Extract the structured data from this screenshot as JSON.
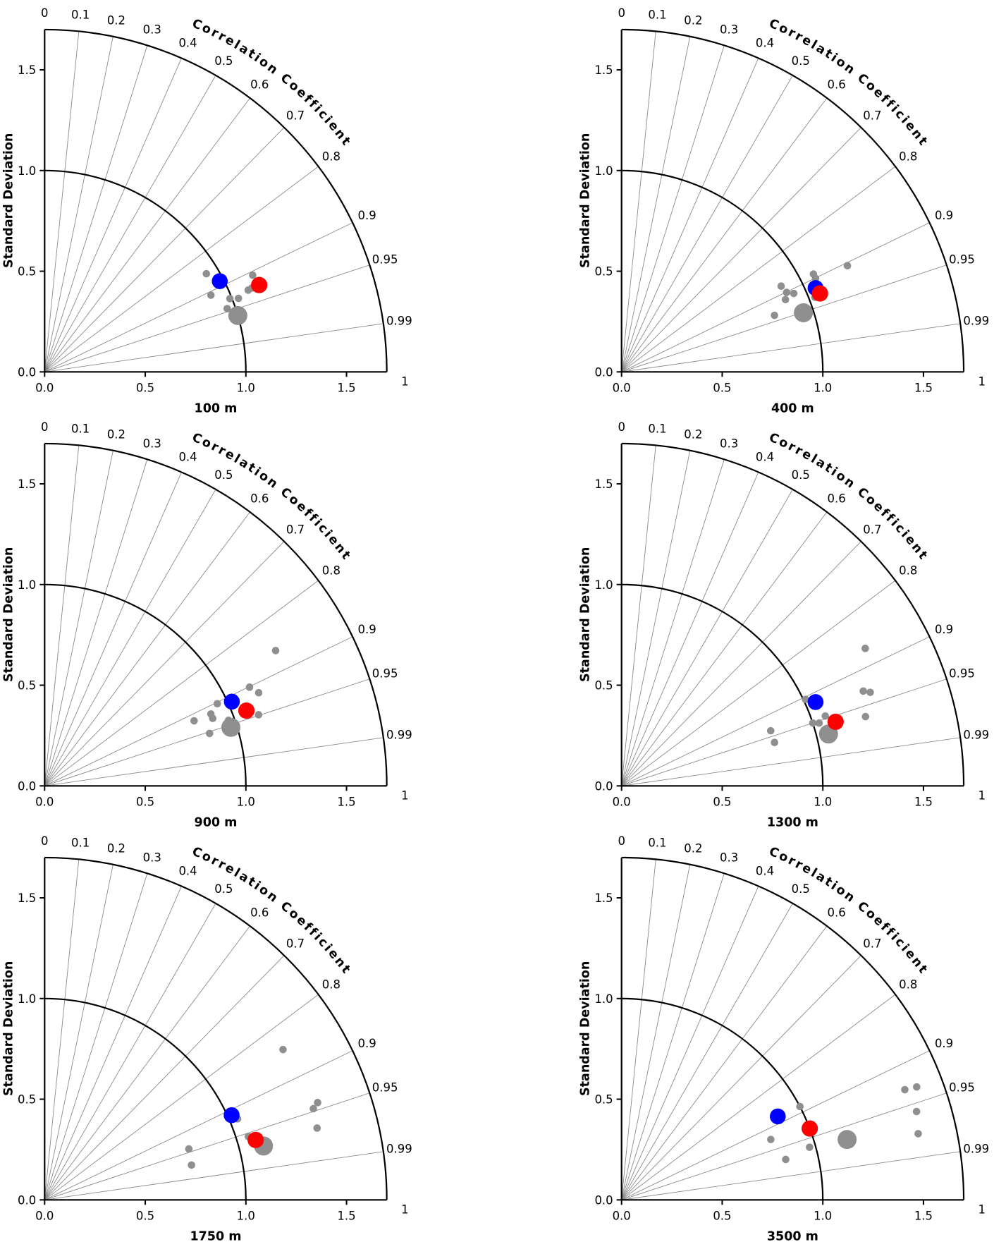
{
  "figure": {
    "ylabel": "Standard Deviation",
    "arc_label": "Correlation Coefficient",
    "x_tick_labels": [
      "0.0",
      "0.5",
      "1.0",
      "1.5"
    ],
    "y_tick_labels": [
      "0.0",
      "0.5",
      "1.0",
      "1.5"
    ],
    "x_tick_values": [
      0,
      0.5,
      1.0,
      1.5
    ],
    "y_tick_values": [
      0,
      0.5,
      1.0,
      1.5
    ],
    "corr_ticks": [
      {
        "value": 0.0,
        "label": "0"
      },
      {
        "value": 0.1,
        "label": "0.1"
      },
      {
        "value": 0.2,
        "label": "0.2"
      },
      {
        "value": 0.3,
        "label": "0.3"
      },
      {
        "value": 0.4,
        "label": "0.4"
      },
      {
        "value": 0.5,
        "label": "0.5"
      },
      {
        "value": 0.6,
        "label": "0.6"
      },
      {
        "value": 0.7,
        "label": "0.7"
      },
      {
        "value": 0.8,
        "label": "0.8"
      },
      {
        "value": 0.9,
        "label": "0.9"
      },
      {
        "value": 0.95,
        "label": "0.95"
      },
      {
        "value": 0.99,
        "label": "0.99"
      },
      {
        "value": 1.0,
        "label": "1"
      }
    ],
    "radial_max": 1.7,
    "reference_std_arc": 1.0,
    "colors": {
      "blue_marker": "#0000ff",
      "red_marker": "#ff0000",
      "gray_marker": "#8f8f8f",
      "grid_line": "#8a8a8a",
      "axis_line": "#000000",
      "background": "#ffffff"
    }
  },
  "chart_data": [
    {
      "type": "taylor",
      "title": "100 m",
      "axis_range": [
        0,
        1.7
      ],
      "blue": {
        "corr": 0.888,
        "std": 0.98
      },
      "red": {
        "corr": 0.927,
        "std": 1.15
      },
      "gray_large": {
        "corr": 0.96,
        "std": 1.0
      },
      "gray_small": [
        {
          "corr": 0.855,
          "std": 0.94
        },
        {
          "corr": 0.907,
          "std": 1.14
        },
        {
          "corr": 0.908,
          "std": 0.91
        },
        {
          "corr": 0.928,
          "std": 1.09
        },
        {
          "corr": 0.927,
          "std": 1.11
        },
        {
          "corr": 0.93,
          "std": 0.99
        },
        {
          "corr": 0.935,
          "std": 1.03
        },
        {
          "corr": 0.945,
          "std": 0.96
        }
      ]
    },
    {
      "type": "taylor",
      "title": "400 m",
      "axis_range": [
        0,
        1.7
      ],
      "blue": {
        "corr": 0.918,
        "std": 1.05
      },
      "red": {
        "corr": 0.93,
        "std": 1.06
      },
      "gray_large": {
        "corr": 0.951,
        "std": 0.95
      },
      "gray_small": [
        {
          "corr": 0.905,
          "std": 1.24
        },
        {
          "corr": 0.891,
          "std": 1.07
        },
        {
          "corr": 0.901,
          "std": 1.07
        },
        {
          "corr": 0.881,
          "std": 0.9
        },
        {
          "corr": 0.901,
          "std": 0.91
        },
        {
          "corr": 0.91,
          "std": 0.94
        },
        {
          "corr": 0.915,
          "std": 0.89
        },
        {
          "corr": 0.938,
          "std": 0.81
        },
        {
          "corr": 0.933,
          "std": 1.03
        }
      ]
    },
    {
      "type": "taylor",
      "title": "900 m",
      "axis_range": [
        0,
        1.7
      ],
      "blue": {
        "corr": 0.912,
        "std": 1.02
      },
      "red": {
        "corr": 0.937,
        "std": 1.07
      },
      "gray_large": {
        "corr": 0.954,
        "std": 0.97
      },
      "gray_small": [
        {
          "corr": 0.863,
          "std": 1.33
        },
        {
          "corr": 0.901,
          "std": 1.13
        },
        {
          "corr": 0.917,
          "std": 1.16
        },
        {
          "corr": 0.903,
          "std": 0.95
        },
        {
          "corr": 0.918,
          "std": 0.9
        },
        {
          "corr": 0.928,
          "std": 0.9
        },
        {
          "corr": 0.917,
          "std": 0.81
        },
        {
          "corr": 0.949,
          "std": 1.12
        },
        {
          "corr": 0.942,
          "std": 0.97
        },
        {
          "corr": 0.953,
          "std": 0.86
        }
      ]
    },
    {
      "type": "taylor",
      "title": "1300 m",
      "axis_range": [
        0,
        1.7
      ],
      "blue": {
        "corr": 0.918,
        "std": 1.05
      },
      "red": {
        "corr": 0.958,
        "std": 1.11
      },
      "gray_large": {
        "corr": 0.97,
        "std": 1.06
      },
      "gray_small": [
        {
          "corr": 0.871,
          "std": 1.39
        },
        {
          "corr": 0.931,
          "std": 1.29
        },
        {
          "corr": 0.936,
          "std": 1.32
        },
        {
          "corr": 0.905,
          "std": 1.01
        },
        {
          "corr": 0.962,
          "std": 1.26
        },
        {
          "corr": 0.946,
          "std": 1.07
        },
        {
          "corr": 0.95,
          "std": 1.0
        },
        {
          "corr": 0.953,
          "std": 1.03
        },
        {
          "corr": 0.938,
          "std": 0.79
        },
        {
          "corr": 0.962,
          "std": 0.79
        }
      ]
    },
    {
      "type": "taylor",
      "title": "1750 m",
      "axis_range": [
        0,
        1.7
      ],
      "blue": {
        "corr": 0.911,
        "std": 1.02
      },
      "red": {
        "corr": 0.962,
        "std": 1.09
      },
      "gray_large": {
        "corr": 0.971,
        "std": 1.12
      },
      "gray_small": [
        {
          "corr": 0.846,
          "std": 1.4
        },
        {
          "corr": 0.942,
          "std": 1.44
        },
        {
          "corr": 0.947,
          "std": 1.41
        },
        {
          "corr": 0.967,
          "std": 1.4
        },
        {
          "corr": 0.922,
          "std": 1.04
        },
        {
          "corr": 0.955,
          "std": 1.06
        },
        {
          "corr": 0.965,
          "std": 1.13
        },
        {
          "corr": 0.943,
          "std": 0.76
        },
        {
          "corr": 0.973,
          "std": 0.75
        }
      ]
    },
    {
      "type": "taylor",
      "title": "3500 m",
      "axis_range": [
        0,
        1.7
      ],
      "blue": {
        "corr": 0.882,
        "std": 0.88
      },
      "red": {
        "corr": 0.935,
        "std": 1.0
      },
      "gray_large": {
        "corr": 0.966,
        "std": 1.16
      },
      "gray_small": [
        {
          "corr": 0.886,
          "std": 1.0
        },
        {
          "corr": 0.927,
          "std": 0.8
        },
        {
          "corr": 0.963,
          "std": 0.97
        },
        {
          "corr": 0.971,
          "std": 0.84
        },
        {
          "corr": 0.932,
          "std": 1.51
        },
        {
          "corr": 0.934,
          "std": 1.57
        },
        {
          "corr": 0.958,
          "std": 1.53
        },
        {
          "corr": 0.976,
          "std": 1.51
        }
      ]
    }
  ]
}
